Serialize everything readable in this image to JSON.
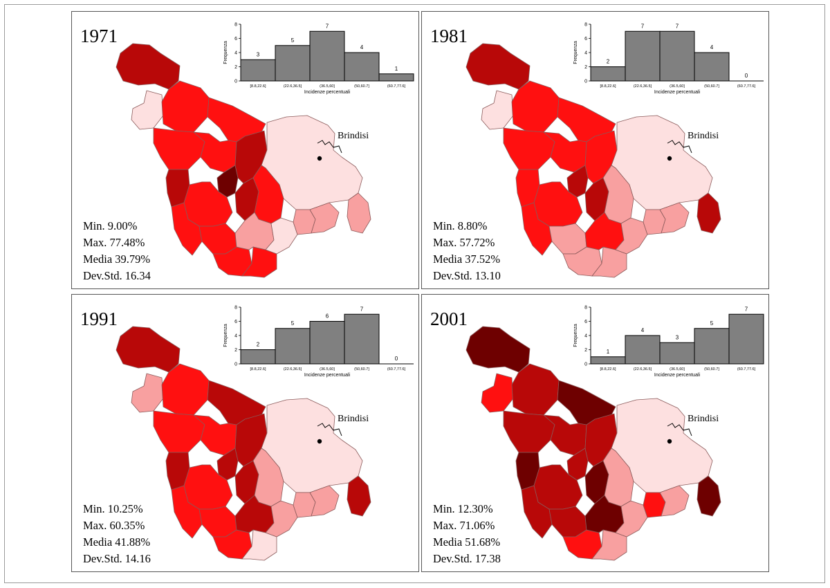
{
  "colors": {
    "c1": "#fde0e0",
    "c2": "#f8a0a0",
    "c3": "#ff1010",
    "c4": "#b80808",
    "c5": "#6e0000",
    "bar_fill": "#808080"
  },
  "histogram_common": {
    "ylabel": "Frequenza",
    "xlabel": "Incidenze percentuali",
    "categories": [
      "[8.8,22.6]",
      "(22.6,36.5]",
      "(36.5,60]",
      "(50,60.7]",
      "(60.7,77.6]"
    ],
    "y_ticks": [
      "0",
      "2",
      "4",
      "6",
      "8"
    ],
    "ylim": [
      0,
      8
    ]
  },
  "panels": [
    {
      "year": "1971",
      "city": "Brindisi",
      "stats": [
        "Min. 9.00%",
        "Max. 77.48%",
        "Media 39.79%",
        "Dev.Std. 16.34"
      ],
      "colors": [
        4,
        1,
        3,
        3,
        3,
        3,
        4,
        5,
        4,
        4,
        3,
        3,
        3,
        1,
        3,
        3,
        2,
        3,
        1,
        2,
        2,
        2
      ]
    },
    {
      "year": "1981",
      "city": "Brindisi",
      "stats": [
        "Min. 8.80%",
        "Max. 57.72%",
        "Media 37.52%",
        "Dev.Std. 13.10"
      ],
      "colors": [
        4,
        1,
        3,
        3,
        3,
        3,
        3,
        4,
        3,
        4,
        3,
        3,
        2,
        1,
        2,
        2,
        3,
        2,
        2,
        2,
        2,
        4
      ]
    },
    {
      "year": "1991",
      "city": "Brindisi",
      "stats": [
        "Min. 10.25%",
        "Max. 60.35%",
        "Media 41.88%",
        "Dev.Std. 14.16"
      ],
      "colors": [
        4,
        2,
        3,
        4,
        3,
        3,
        4,
        4,
        4,
        4,
        3,
        3,
        3,
        1,
        2,
        3,
        4,
        1,
        2,
        2,
        2,
        4
      ]
    },
    {
      "year": "2001",
      "city": "Brindisi",
      "stats": [
        "Min. 12.30%",
        "Max. 71.06%",
        "Media 51.68%",
        "Dev.Std. 17.38"
      ],
      "colors": [
        5,
        3,
        4,
        5,
        4,
        4,
        5,
        4,
        4,
        5,
        4,
        4,
        4,
        1,
        2,
        3,
        5,
        2,
        2,
        3,
        2,
        5
      ]
    }
  ],
  "chart_data": [
    {
      "type": "bar",
      "title": "1971",
      "categories": [
        "[8.8,22.6]",
        "(22.6,36.5]",
        "(36.5,60]",
        "(50,60.7]",
        "(60.7,77.6]"
      ],
      "values": [
        3,
        5,
        7,
        4,
        1
      ],
      "xlabel": "Incidenze percentuali",
      "ylabel": "Frequenza",
      "ylim": [
        0,
        8
      ]
    },
    {
      "type": "bar",
      "title": "1981",
      "categories": [
        "[8.8,22.6]",
        "(22.6,36.5]",
        "(36.5,60]",
        "(50,60.7]",
        "(60.7,77.6]"
      ],
      "values": [
        2,
        7,
        7,
        4,
        0
      ],
      "xlabel": "Incidenze percentuali",
      "ylabel": "Frequenza",
      "ylim": [
        0,
        8
      ]
    },
    {
      "type": "bar",
      "title": "1991",
      "categories": [
        "[8.8,22.6]",
        "(22.6,36.5]",
        "(36.5,60]",
        "(50,60.7]",
        "(60.7,77.6]"
      ],
      "values": [
        2,
        5,
        6,
        7,
        0
      ],
      "xlabel": "Incidenze percentuali",
      "ylabel": "Frequenza",
      "ylim": [
        0,
        8
      ]
    },
    {
      "type": "bar",
      "title": "2001",
      "categories": [
        "[8.8,22.6]",
        "(22.6,36.5]",
        "(36.5,60]",
        "(50,60.7]",
        "(60.7,77.6]"
      ],
      "values": [
        1,
        4,
        3,
        5,
        7
      ],
      "xlabel": "Incidenze percentuali",
      "ylabel": "Frequenza",
      "ylim": [
        0,
        8
      ]
    }
  ]
}
